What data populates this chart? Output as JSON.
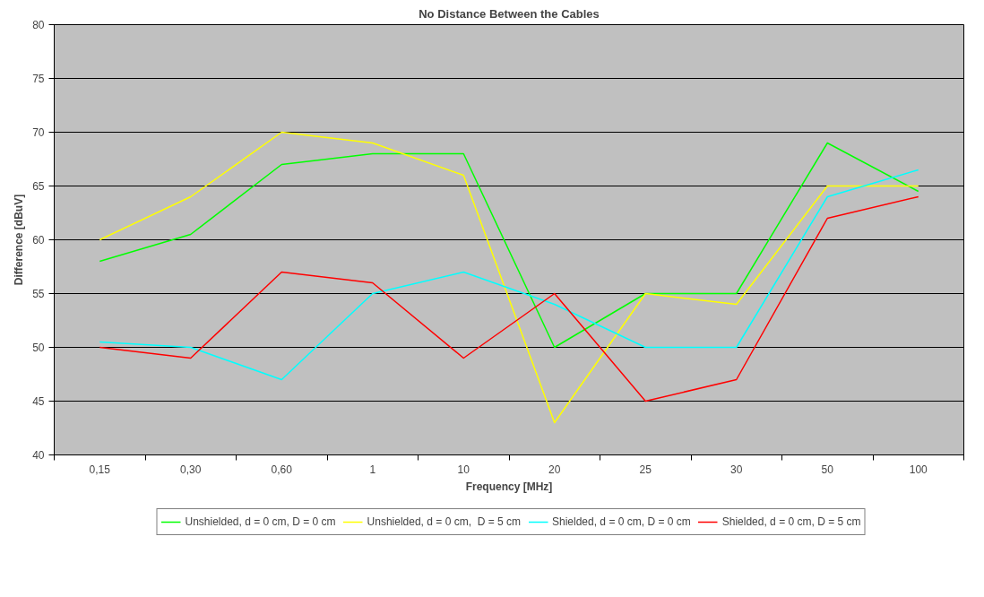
{
  "chart_data": {
    "type": "line",
    "title": "No Distance Between the Cables",
    "xlabel": "Frequency [MHz]",
    "ylabel": "Difference [dBuV]",
    "categories": [
      "0,15",
      "0,30",
      "0,60",
      "1",
      "10",
      "20",
      "25",
      "30",
      "50",
      "100"
    ],
    "series": [
      {
        "name": "Unshielded, d = 0 cm, D = 0 cm",
        "color": "#00ff00",
        "values": [
          58,
          60.5,
          67,
          68,
          68,
          50,
          55,
          55,
          69,
          64.5
        ]
      },
      {
        "name": "Unshielded, d = 0 cm,  D = 5 cm",
        "color": "#ffff00",
        "values": [
          60,
          64,
          70,
          69,
          66,
          43,
          55,
          54,
          65,
          65
        ]
      },
      {
        "name": "Shielded, d = 0 cm, D = 0 cm",
        "color": "#00ffff",
        "values": [
          50.5,
          50,
          47,
          55,
          57,
          54,
          50,
          50,
          64,
          66.5
        ]
      },
      {
        "name": "Shielded, d = 0 cm, D = 5 cm",
        "color": "#ff0000",
        "values": [
          50,
          49,
          57,
          56,
          49,
          55,
          45,
          47,
          62,
          64
        ]
      }
    ],
    "ylim": [
      40,
      80
    ],
    "yticks": [
      40,
      45,
      50,
      55,
      60,
      65,
      70,
      75,
      80
    ],
    "grid": "y",
    "legend": "bottom",
    "marker": "none",
    "line_style": "solid"
  }
}
